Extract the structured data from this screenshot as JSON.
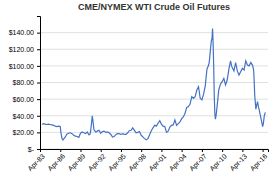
{
  "chart_data": {
    "type": "line",
    "title": "CME/NYMEX WTI Crude Oil Futures",
    "color": "#4472C4",
    "grid": true,
    "xlim": [
      1983.0,
      2016.8
    ],
    "ylim": [
      0,
      160
    ],
    "xticks": [
      {
        "value": 1983,
        "label": "Apr-83"
      },
      {
        "value": 1986,
        "label": "Apr-86"
      },
      {
        "value": 1989,
        "label": "Apr-89"
      },
      {
        "value": 1992,
        "label": "Apr-92"
      },
      {
        "value": 1995,
        "label": "Apr-95"
      },
      {
        "value": 1998,
        "label": "Apr-98"
      },
      {
        "value": 2001,
        "label": "Apr-01"
      },
      {
        "value": 2004,
        "label": "Apr-04"
      },
      {
        "value": 2007,
        "label": "Apr-07"
      },
      {
        "value": 2010,
        "label": "Apr-10"
      },
      {
        "value": 2013,
        "label": "Apr-13"
      },
      {
        "value": 2016,
        "label": "Apr-16"
      }
    ],
    "yticks": [
      {
        "value": 0,
        "label": "$-"
      },
      {
        "value": 20,
        "label": "$20.00"
      },
      {
        "value": 40,
        "label": "$40.00"
      },
      {
        "value": 60,
        "label": "$60.00"
      },
      {
        "value": 80,
        "label": "$80.00"
      },
      {
        "value": 100,
        "label": "$100.00"
      },
      {
        "value": 120,
        "label": "$120.00"
      },
      {
        "value": 140,
        "label": "$140.00"
      }
    ],
    "x": [
      1983.33,
      1983.5,
      1983.75,
      1984.0,
      1984.25,
      1984.5,
      1984.75,
      1985.0,
      1985.25,
      1985.5,
      1985.75,
      1986.0,
      1986.1,
      1986.25,
      1986.4,
      1986.5,
      1986.75,
      1987.0,
      1987.25,
      1987.5,
      1987.75,
      1988.0,
      1988.25,
      1988.5,
      1988.75,
      1989.0,
      1989.25,
      1989.5,
      1989.75,
      1990.0,
      1990.25,
      1990.4,
      1990.5,
      1990.7,
      1990.75,
      1990.83,
      1991.0,
      1991.25,
      1991.5,
      1991.75,
      1992.0,
      1992.25,
      1992.5,
      1992.75,
      1993.0,
      1993.25,
      1993.5,
      1993.75,
      1994.0,
      1994.25,
      1994.5,
      1994.75,
      1995.0,
      1995.25,
      1995.5,
      1995.75,
      1996.0,
      1996.25,
      1996.5,
      1996.75,
      1997.0,
      1997.25,
      1997.5,
      1997.75,
      1998.0,
      1998.25,
      1998.5,
      1998.75,
      1999.0,
      1999.25,
      1999.5,
      1999.75,
      2000.0,
      2000.25,
      2000.5,
      2000.75,
      2001.0,
      2001.25,
      2001.5,
      2001.75,
      2002.0,
      2002.25,
      2002.5,
      2002.75,
      2003.0,
      2003.25,
      2003.5,
      2003.75,
      2004.0,
      2004.25,
      2004.5,
      2004.75,
      2005.0,
      2005.25,
      2005.5,
      2005.75,
      2006.0,
      2006.25,
      2006.5,
      2006.75,
      2007.0,
      2007.25,
      2007.5,
      2007.75,
      2008.0,
      2008.1,
      2008.25,
      2008.4,
      2008.5,
      2008.55,
      2008.583,
      2008.62,
      2008.67,
      2008.75,
      2008.83,
      2008.917,
      2009.0,
      2009.1,
      2009.25,
      2009.5,
      2009.75,
      2010.0,
      2010.25,
      2010.5,
      2010.75,
      2011.0,
      2011.1,
      2011.25,
      2011.4,
      2011.5,
      2011.75,
      2012.0,
      2012.25,
      2012.5,
      2012.75,
      2013.0,
      2013.25,
      2013.5,
      2013.75,
      2014.0,
      2014.25,
      2014.5,
      2014.67,
      2014.75,
      2014.83,
      2015.0,
      2015.1,
      2015.25,
      2015.4,
      2015.5,
      2015.67,
      2015.75,
      2015.83,
      2016.0,
      2016.1,
      2016.25,
      2016.4
    ],
    "values": [
      29.5,
      30.5,
      30,
      29.5,
      30,
      29.5,
      29,
      28.5,
      27.5,
      27,
      27.5,
      27,
      20,
      13,
      11,
      12,
      14.5,
      18,
      19,
      19.5,
      18.5,
      16.5,
      15.5,
      15,
      14,
      19,
      20.5,
      19.5,
      18.5,
      20.5,
      17,
      17.5,
      21,
      36,
      40,
      35,
      23,
      20.5,
      21.5,
      22.5,
      19,
      21,
      21.5,
      20,
      20.5,
      19.5,
      17.5,
      14.5,
      15,
      17.5,
      18.5,
      18.5,
      17.5,
      18.5,
      17.5,
      17.5,
      19.5,
      22,
      22.5,
      25.5,
      22.5,
      19.5,
      20,
      21,
      16.5,
      14.5,
      12.5,
      11,
      12.5,
      17,
      22,
      25.5,
      28.5,
      27.5,
      31,
      34,
      30,
      27.5,
      27,
      20,
      21.5,
      26.5,
      28.5,
      29,
      35,
      28.5,
      30.5,
      32.5,
      36.5,
      38.5,
      43,
      50,
      51,
      54,
      63,
      61,
      63,
      71,
      75,
      61,
      59,
      66,
      76,
      96,
      101,
      105,
      118,
      130,
      133,
      140,
      145,
      138,
      125,
      100,
      65,
      43,
      36,
      40,
      51,
      71,
      78,
      81,
      85,
      77,
      83,
      96,
      100,
      106,
      100,
      98,
      94,
      104,
      94,
      89,
      93,
      97,
      95,
      106,
      101,
      100,
      104,
      101,
      95,
      82,
      65,
      48,
      52,
      57,
      50,
      47,
      40,
      37,
      34,
      27,
      30,
      40,
      44
    ]
  }
}
